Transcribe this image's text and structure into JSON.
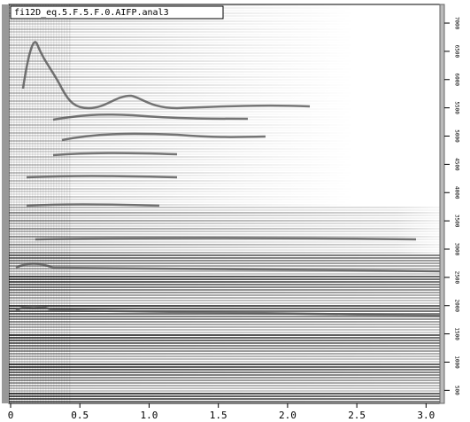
{
  "chart_data": {
    "type": "spectrogram",
    "title": "fi12D_eq.5.F.5.F.0.AIFP.anal3",
    "xlim": [
      0,
      3.1
    ],
    "xticks": [
      0,
      0.5,
      {
        "value": 1,
        "label": "1.0"
      },
      1.5,
      {
        "value": 2,
        "label": "2.0"
      },
      2.5,
      {
        "value": 3,
        "label": "3.0"
      }
    ],
    "ylim": [
      270,
      7330
    ],
    "yticks": [
      500,
      1000,
      1500,
      2000,
      2500,
      3000,
      3500,
      4000,
      4500,
      5000,
      5500,
      6000,
      6500,
      7000
    ]
  }
}
